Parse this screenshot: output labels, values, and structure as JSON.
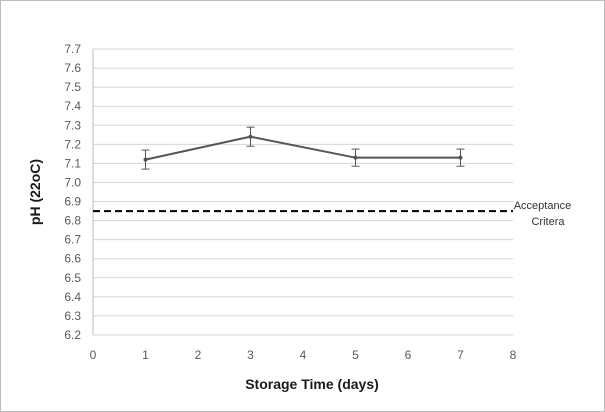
{
  "chart_data": {
    "type": "line",
    "title": "",
    "xlabel": "Storage Time (days)",
    "ylabel": "pH (22oC)",
    "xlim": [
      0,
      8
    ],
    "ylim": [
      6.2,
      7.7
    ],
    "x_ticks": [
      "0",
      "1",
      "2",
      "3",
      "4",
      "5",
      "6",
      "7",
      "8"
    ],
    "y_ticks": [
      "6.2",
      "6.3",
      "6.4",
      "6.5",
      "6.6",
      "6.7",
      "6.8",
      "6.9",
      "7.0",
      "7.1",
      "7.2",
      "7.3",
      "7.4",
      "7.5",
      "7.6",
      "7.7"
    ],
    "grid": "horizontal",
    "legend": "none",
    "series": [
      {
        "x": [
          1,
          3,
          5,
          7
        ],
        "y": [
          7.12,
          7.24,
          7.13,
          7.13
        ],
        "error": [
          0.05,
          0.05,
          0.045,
          0.045
        ],
        "color": "#555555"
      }
    ],
    "reference_line": {
      "y": 6.85,
      "style": "dashed",
      "color": "#000000",
      "label_lines": [
        "Acceptance",
        "Critera"
      ]
    }
  }
}
